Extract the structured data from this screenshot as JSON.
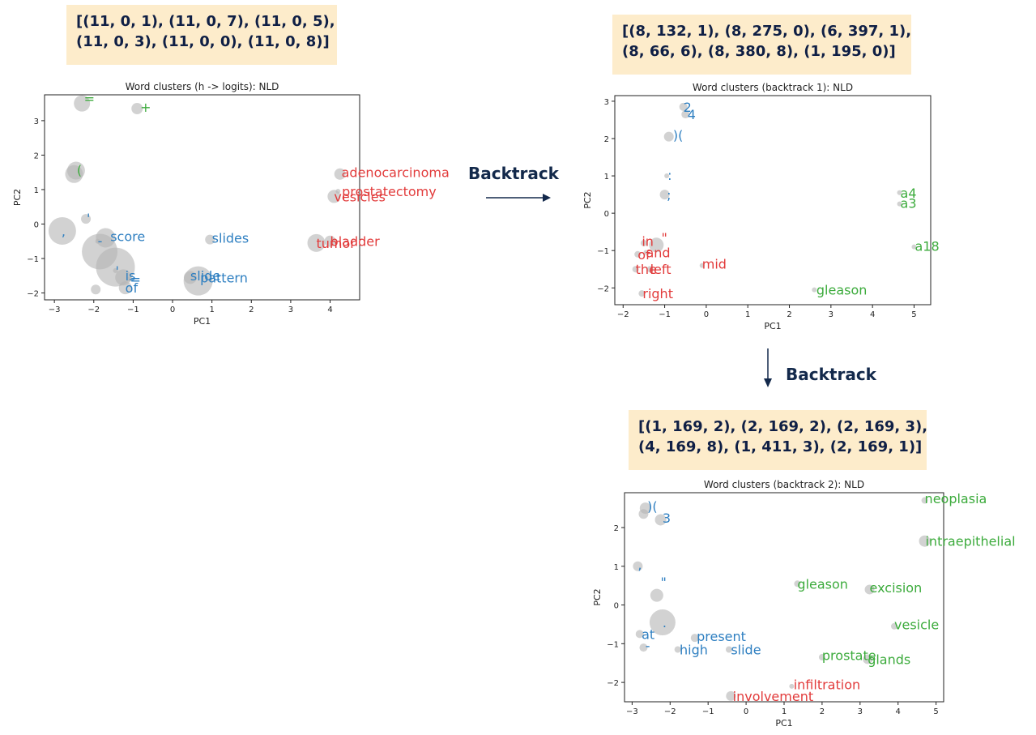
{
  "boxes": {
    "top_left": {
      "line1": "[(11, 0, 1), (11, 0, 7), (11, 0, 5),",
      "line2": "(11, 0, 3), (11, 0, 0), (11, 0, 8)]"
    },
    "top_right": {
      "line1": "[(8, 132, 1), (8, 275, 0), (6, 397, 1),",
      "line2": "(8, 66, 6), (8, 380, 8), (1, 195, 0)]"
    },
    "bottom_right": {
      "line1": "[(1, 169, 2), (2, 169, 2), (2, 169, 3),",
      "line2": "(4, 169, 8), (1, 411, 3), (2, 169, 1)]"
    }
  },
  "arrows": {
    "right_label": "Backtrack",
    "down_label": "Backtrack"
  },
  "colors": {
    "blue": "#2e7fc1",
    "green": "#3cab3c",
    "red": "#e23b3b",
    "bubble": "#b4b4b4",
    "box_bg": "#fdeccb",
    "box_text": "#0f1f45"
  },
  "chart_data": [
    {
      "type": "scatter",
      "title": "Word clusters (h -> logits): NLD",
      "xlabel": "PC1",
      "ylabel": "PC2",
      "xlim": [
        -3.25,
        4.75
      ],
      "ylim": [
        -2.2,
        3.75
      ],
      "xticks": [
        -3,
        -2,
        -1,
        0,
        1,
        2,
        3,
        4
      ],
      "yticks": [
        -2,
        -1,
        0,
        1,
        2,
        3
      ],
      "points": [
        {
          "x": -2.3,
          "y": 3.5,
          "r": 10,
          "label": "=",
          "color": "green",
          "lx": 0.05,
          "ly": 0.15
        },
        {
          "x": -0.9,
          "y": 3.35,
          "r": 7,
          "label": "+",
          "color": "green",
          "lx": 0.08,
          "ly": 0.05
        },
        {
          "x": -2.45,
          "y": 1.55,
          "r": 11,
          "label": "(",
          "color": "green",
          "lx": 0.02,
          "ly": 0.02
        },
        {
          "x": -2.5,
          "y": 1.45,
          "r": 11,
          "label": "",
          "color": "green",
          "lx": 0,
          "ly": 0
        },
        {
          "x": -2.2,
          "y": 0.15,
          "r": 6,
          "label": "'",
          "color": "blue",
          "lx": 0.02,
          "ly": 0.02
        },
        {
          "x": -2.8,
          "y": -0.2,
          "r": 17,
          "label": ",",
          "color": "blue",
          "lx": -0.02,
          "ly": 0.0
        },
        {
          "x": -1.85,
          "y": -0.8,
          "r": 22,
          "label": "",
          "color": "blue",
          "lx": 0,
          "ly": 0
        },
        {
          "x": -1.7,
          "y": -0.4,
          "r": 12,
          "label": "score",
          "color": "blue",
          "lx": 0.12,
          "ly": 0.05
        },
        {
          "x": -1.9,
          "y": -0.5,
          "r": 3,
          "label": "-",
          "color": "blue",
          "lx": 0.0,
          "ly": 0.02
        },
        {
          "x": -1.45,
          "y": -1.25,
          "r": 24,
          "label": "",
          "color": "blue",
          "lx": 0,
          "ly": 0
        },
        {
          "x": -1.25,
          "y": -1.55,
          "r": 10,
          "label": "is",
          "color": "blue",
          "lx": 0.05,
          "ly": 0.05
        },
        {
          "x": -1.2,
          "y": -1.85,
          "r": 8,
          "label": "of",
          "color": "blue",
          "lx": 0.0,
          "ly": 0.0
        },
        {
          "x": -1.45,
          "y": -1.35,
          "r": 3,
          "label": "'",
          "color": "blue",
          "lx": 0.0,
          "ly": 0.0
        },
        {
          "x": -1.95,
          "y": -1.9,
          "r": 6,
          "label": "",
          "color": "blue",
          "lx": 0,
          "ly": 0
        },
        {
          "x": -1.1,
          "y": -1.6,
          "r": 3,
          "label": "=",
          "color": "blue",
          "lx": 0.02,
          "ly": 0.0
        },
        {
          "x": 0.95,
          "y": -0.45,
          "r": 6,
          "label": "slides",
          "color": "blue",
          "lx": 0.05,
          "ly": 0.05
        },
        {
          "x": 0.45,
          "y": -1.55,
          "r": 8,
          "label": "slide",
          "color": "blue",
          "lx": 0.0,
          "ly": 0.05
        },
        {
          "x": 0.65,
          "y": -1.65,
          "r": 18,
          "label": "pattern",
          "color": "blue",
          "lx": 0.05,
          "ly": 0.1
        },
        {
          "x": 4.25,
          "y": 1.45,
          "r": 7,
          "label": "adenocarcinoma",
          "color": "red",
          "lx": 0.04,
          "ly": 0.05
        },
        {
          "x": 4.1,
          "y": 0.8,
          "r": 8,
          "label": "vesicles",
          "color": "red",
          "lx": 0.0,
          "ly": 0.0
        },
        {
          "x": 4.2,
          "y": 0.95,
          "r": 3,
          "label": "prostatectomy",
          "color": "red",
          "lx": 0.1,
          "ly": 0.0
        },
        {
          "x": 3.65,
          "y": -0.55,
          "r": 11,
          "label": "tumor",
          "color": "red",
          "lx": 0.0,
          "ly": 0.0
        },
        {
          "x": 4.0,
          "y": -0.5,
          "r": 7,
          "label": "bladder",
          "color": "red",
          "lx": 0.0,
          "ly": 0.0
        }
      ]
    },
    {
      "type": "scatter",
      "title": "Word clusters (backtrack 1): NLD",
      "xlabel": "PC1",
      "ylabel": "PC2",
      "xlim": [
        -2.2,
        5.4
      ],
      "ylim": [
        -2.45,
        3.15
      ],
      "xticks": [
        -2,
        -1,
        0,
        1,
        2,
        3,
        4,
        5
      ],
      "yticks": [
        -2,
        -1,
        0,
        1,
        2,
        3
      ],
      "points": [
        {
          "x": -0.55,
          "y": 2.85,
          "r": 5,
          "label": "2",
          "color": "blue",
          "lx": 0.0,
          "ly": 0.0
        },
        {
          "x": -0.5,
          "y": 2.65,
          "r": 5,
          "label": "4",
          "color": "blue",
          "lx": 0.05,
          "ly": 0.0
        },
        {
          "x": -0.9,
          "y": 2.05,
          "r": 6,
          "label": ")(",
          "color": "blue",
          "lx": 0.1,
          "ly": 0.05
        },
        {
          "x": -0.95,
          "y": 1.0,
          "r": 3,
          "label": ":",
          "color": "blue",
          "lx": 0.02,
          "ly": 0.02
        },
        {
          "x": -1.0,
          "y": 0.5,
          "r": 6,
          "label": ";",
          "color": "blue",
          "lx": 0.05,
          "ly": 0.0
        },
        {
          "x": -1.5,
          "y": -0.8,
          "r": 4,
          "label": "in",
          "color": "red",
          "lx": -0.05,
          "ly": 0.05
        },
        {
          "x": -1.2,
          "y": -0.85,
          "r": 9,
          "label": "\"",
          "color": "red",
          "lx": 0.12,
          "ly": 0.2
        },
        {
          "x": -1.65,
          "y": -1.1,
          "r": 4,
          "label": "of",
          "color": "red",
          "lx": 0.0,
          "ly": 0.0
        },
        {
          "x": -1.45,
          "y": -1.05,
          "r": 3,
          "label": "and",
          "color": "red",
          "lx": 0.0,
          "ly": 0.0
        },
        {
          "x": -1.7,
          "y": -1.5,
          "r": 4,
          "label": "the",
          "color": "red",
          "lx": 0.0,
          "ly": 0.0
        },
        {
          "x": -1.35,
          "y": -1.5,
          "r": 4,
          "label": "left",
          "color": "red",
          "lx": 0.0,
          "ly": 0.0
        },
        {
          "x": -1.55,
          "y": -2.15,
          "r": 4,
          "label": "right",
          "color": "red",
          "lx": 0.02,
          "ly": 0.0
        },
        {
          "x": -0.1,
          "y": -1.4,
          "r": 3,
          "label": "mid",
          "color": "red",
          "lx": 0.0,
          "ly": 0.05
        },
        {
          "x": 4.65,
          "y": 0.55,
          "r": 3,
          "label": "a4",
          "color": "green",
          "lx": 0.02,
          "ly": 0.0
        },
        {
          "x": 4.65,
          "y": 0.25,
          "r": 3,
          "label": "a3",
          "color": "green",
          "lx": 0.02,
          "ly": 0.02
        },
        {
          "x": 5.0,
          "y": -0.9,
          "r": 3,
          "label": "a18",
          "color": "green",
          "lx": 0.02,
          "ly": 0.02
        },
        {
          "x": 2.6,
          "y": -2.05,
          "r": 3,
          "label": "gleason",
          "color": "green",
          "lx": 0.05,
          "ly": 0.0
        }
      ]
    },
    {
      "type": "scatter",
      "title": "Word clusters (backtrack 2): NLD",
      "xlabel": "PC1",
      "ylabel": "PC2",
      "xlim": [
        -3.2,
        5.2
      ],
      "ylim": [
        -2.5,
        2.9
      ],
      "xticks": [
        -3,
        -2,
        -1,
        0,
        1,
        2,
        3,
        4,
        5
      ],
      "yticks": [
        -2,
        -1,
        0,
        1,
        2
      ],
      "points": [
        {
          "x": -2.65,
          "y": 2.5,
          "r": 7,
          "label": ")(",
          "color": "blue",
          "lx": 0.05,
          "ly": 0.05
        },
        {
          "x": -2.7,
          "y": 2.35,
          "r": 6,
          "label": "",
          "color": "blue",
          "lx": 0,
          "ly": 0
        },
        {
          "x": -2.25,
          "y": 2.2,
          "r": 7,
          "label": "3",
          "color": "blue",
          "lx": 0.05,
          "ly": 0.05
        },
        {
          "x": -2.85,
          "y": 1.0,
          "r": 6,
          "label": ",",
          "color": "blue",
          "lx": 0.0,
          "ly": 0.05
        },
        {
          "x": -2.35,
          "y": 0.25,
          "r": 8,
          "label": "\"",
          "color": "blue",
          "lx": 0.1,
          "ly": 0.35
        },
        {
          "x": -2.2,
          "y": -0.45,
          "r": 16,
          "label": ".",
          "color": "blue",
          "lx": 0.0,
          "ly": 0.0
        },
        {
          "x": -2.8,
          "y": -0.75,
          "r": 5,
          "label": "at",
          "color": "blue",
          "lx": 0.05,
          "ly": 0.0
        },
        {
          "x": -2.7,
          "y": -1.1,
          "r": 5,
          "label": "-",
          "color": "blue",
          "lx": 0.05,
          "ly": 0.05
        },
        {
          "x": -1.35,
          "y": -0.85,
          "r": 5,
          "label": "present",
          "color": "blue",
          "lx": 0.05,
          "ly": 0.05
        },
        {
          "x": -1.8,
          "y": -1.15,
          "r": 4,
          "label": "high",
          "color": "blue",
          "lx": 0.05,
          "ly": 0.0
        },
        {
          "x": -0.45,
          "y": -1.15,
          "r": 4,
          "label": "slide",
          "color": "blue",
          "lx": 0.05,
          "ly": 0.0
        },
        {
          "x": 4.7,
          "y": 2.7,
          "r": 4,
          "label": "neoplasia",
          "color": "green",
          "lx": 0.0,
          "ly": 0.05
        },
        {
          "x": 4.7,
          "y": 1.65,
          "r": 7,
          "label": "intraepithelial",
          "color": "green",
          "lx": 0.02,
          "ly": 0.0
        },
        {
          "x": 1.35,
          "y": 0.55,
          "r": 4,
          "label": "gleason",
          "color": "green",
          "lx": 0.0,
          "ly": 0.0
        },
        {
          "x": 3.25,
          "y": 0.4,
          "r": 6,
          "label": "excision",
          "color": "green",
          "lx": 0.0,
          "ly": 0.05
        },
        {
          "x": 3.9,
          "y": -0.55,
          "r": 4,
          "label": "vesicle",
          "color": "green",
          "lx": 0.0,
          "ly": 0.05
        },
        {
          "x": 2.0,
          "y": -1.35,
          "r": 4,
          "label": "prostate",
          "color": "green",
          "lx": 0.0,
          "ly": 0.05
        },
        {
          "x": 3.2,
          "y": -1.4,
          "r": 6,
          "label": "glands",
          "color": "green",
          "lx": 0.0,
          "ly": 0.0
        },
        {
          "x": 1.2,
          "y": -2.1,
          "r": 3,
          "label": "infiltration",
          "color": "red",
          "lx": 0.05,
          "ly": 0.05
        },
        {
          "x": -0.4,
          "y": -2.35,
          "r": 6,
          "label": "involvement",
          "color": "red",
          "lx": 0.05,
          "ly": 0.0
        }
      ]
    }
  ]
}
